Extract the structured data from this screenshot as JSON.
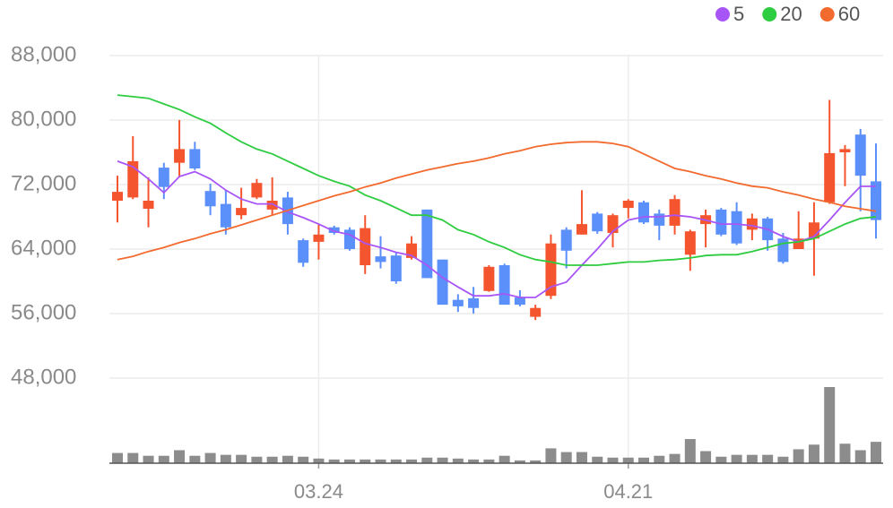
{
  "chart_data": {
    "type": "candlestick",
    "categories": [
      null,
      null,
      null,
      null,
      null,
      null,
      null,
      null,
      null,
      null,
      null,
      null,
      null,
      "03.24",
      null,
      null,
      null,
      null,
      null,
      null,
      null,
      null,
      null,
      null,
      null,
      null,
      null,
      null,
      null,
      null,
      null,
      null,
      null,
      "04.21",
      null,
      null,
      null,
      null,
      null,
      null,
      null,
      null,
      null,
      null,
      null,
      null,
      null,
      null,
      null,
      null
    ],
    "open": [
      70000,
      70400,
      69000,
      74100,
      74700,
      76400,
      71200,
      69600,
      68200,
      70400,
      68900,
      70400,
      65100,
      64900,
      66700,
      66400,
      62000,
      63100,
      63200,
      62900,
      68900,
      62700,
      57700,
      57900,
      58800,
      62000,
      58000,
      55600,
      58200,
      66400,
      65800,
      68400,
      66000,
      69100,
      69800,
      68400,
      66900,
      63300,
      67100,
      68900,
      68700,
      66400,
      67800,
      65300,
      64000,
      65300,
      69800,
      76000,
      78200,
      72400
    ],
    "close": [
      71100,
      74900,
      70000,
      71700,
      76400,
      74000,
      69300,
      66700,
      69100,
      72200,
      70000,
      67100,
      62300,
      65800,
      66000,
      64000,
      66600,
      62400,
      60000,
      64700,
      60400,
      57100,
      56900,
      56700,
      61800,
      57100,
      57100,
      56700,
      64700,
      63800,
      67100,
      66200,
      68200,
      70000,
      67300,
      66900,
      70200,
      66200,
      68200,
      65800,
      64700,
      67800,
      65100,
      62400,
      65300,
      67300,
      75900,
      76400,
      73100,
      67600
    ],
    "high": [
      73100,
      78000,
      72900,
      74700,
      80000,
      77300,
      72100,
      71300,
      71600,
      72700,
      72900,
      71100,
      65300,
      67100,
      66900,
      66700,
      68200,
      65600,
      63600,
      65600,
      68900,
      62700,
      58400,
      59300,
      62000,
      62200,
      58900,
      57100,
      65800,
      66700,
      71300,
      68600,
      68400,
      70200,
      70000,
      68900,
      70700,
      66400,
      68900,
      69100,
      69800,
      68400,
      68000,
      66000,
      68700,
      69800,
      82500,
      76900,
      78900,
      77100
    ],
    "low": [
      67300,
      70200,
      66700,
      70200,
      72900,
      73800,
      68200,
      65800,
      67700,
      70200,
      68200,
      65800,
      61800,
      62700,
      65800,
      63800,
      60900,
      61600,
      59700,
      62700,
      60400,
      57100,
      56200,
      56000,
      58700,
      57100,
      56900,
      55200,
      57800,
      61600,
      65800,
      65900,
      64200,
      67800,
      67100,
      65100,
      65800,
      61300,
      64200,
      65600,
      64500,
      65100,
      63800,
      62200,
      64000,
      60700,
      69600,
      71800,
      68700,
      65300
    ],
    "up_color": "#f4552e",
    "down_color": "#5b8ff9",
    "volume": [
      11,
      11,
      8,
      8,
      14,
      8,
      11,
      9,
      9,
      7,
      7,
      8,
      7,
      5,
      4,
      4,
      4,
      4,
      4,
      4,
      6,
      6,
      5,
      4,
      4,
      8,
      3,
      3,
      16,
      12,
      12,
      7,
      6,
      6,
      6,
      8,
      10,
      26,
      13,
      7,
      9,
      9,
      9,
      7,
      15,
      20,
      82,
      21,
      14,
      23
    ],
    "volume_color": "#8c8c8c",
    "series": [
      {
        "name": "5",
        "color": "#a855f7",
        "values": [
          74900,
          74200,
          72700,
          71000,
          73000,
          73600,
          72700,
          71300,
          70200,
          69600,
          69600,
          68600,
          67900,
          67100,
          66200,
          65800,
          64700,
          64200,
          63600,
          63200,
          62000,
          60450,
          59300,
          58200,
          58200,
          58450,
          58000,
          58000,
          59300,
          59900,
          62000,
          64000,
          66200,
          67600,
          68000,
          68000,
          68200,
          68000,
          67600,
          67100,
          67100,
          66900,
          66450,
          65560,
          64900,
          65560,
          67600,
          69780,
          71780,
          71780
        ]
      },
      {
        "name": "20",
        "color": "#2ecc40",
        "values": [
          83100,
          82900,
          82700,
          82000,
          81300,
          80400,
          79600,
          78400,
          77300,
          76400,
          75800,
          74900,
          74000,
          73100,
          72400,
          71800,
          70700,
          70000,
          69100,
          68200,
          68200,
          67600,
          66400,
          65800,
          64900,
          64200,
          63300,
          62700,
          62400,
          62000,
          62000,
          62000,
          62200,
          62400,
          62400,
          62600,
          62700,
          62900,
          63200,
          63300,
          63300,
          63700,
          64200,
          64700,
          64900,
          65300,
          66200,
          67100,
          67800,
          68000
        ]
      },
      {
        "name": "60",
        "color": "#f26a2e",
        "values": [
          62700,
          63100,
          63700,
          64200,
          64800,
          65300,
          65900,
          66400,
          67000,
          67600,
          68200,
          68800,
          69400,
          70000,
          70600,
          71100,
          71700,
          72200,
          72800,
          73300,
          73800,
          74200,
          74600,
          74900,
          75300,
          75800,
          76200,
          76700,
          77000,
          77200,
          77300,
          77300,
          77100,
          76700,
          75800,
          74900,
          74000,
          73600,
          73100,
          72700,
          72200,
          71800,
          71600,
          71100,
          70700,
          70200,
          69800,
          69300,
          69000,
          68700
        ]
      }
    ],
    "ylim": [
      48000,
      88000
    ],
    "yticks": [
      {
        "value": 48000,
        "label": "48,000"
      },
      {
        "value": 56000,
        "label": "56,000"
      },
      {
        "value": 64000,
        "label": "64,000"
      },
      {
        "value": 72000,
        "label": "72,000"
      },
      {
        "value": 80000,
        "label": "80,000"
      },
      {
        "value": 88000,
        "label": "88,000"
      }
    ],
    "grid": true
  }
}
